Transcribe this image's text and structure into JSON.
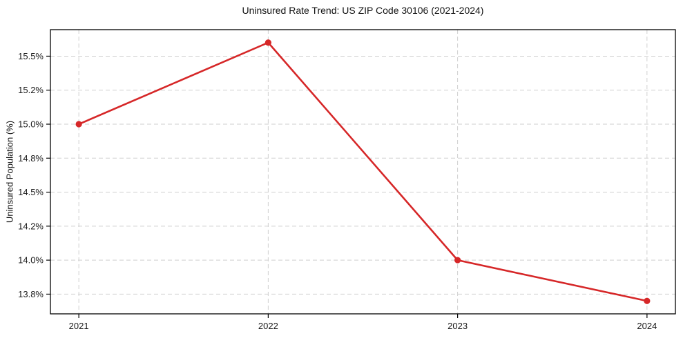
{
  "chart_data": {
    "type": "line",
    "title": "Uninsured Rate Trend: US ZIP Code 30106 (2021-2024)",
    "xlabel": "",
    "ylabel": "Uninsured Population (%)",
    "x": [
      2021,
      2022,
      2023,
      2024
    ],
    "x_tick_labels": [
      "2021",
      "2022",
      "2023",
      "2024"
    ],
    "series": [
      {
        "name": "Uninsured Rate",
        "values": [
          15.0,
          15.6,
          14.0,
          13.7
        ]
      }
    ],
    "y_ticks": [
      13.75,
      14.0,
      14.25,
      14.5,
      14.75,
      15.0,
      15.25,
      15.5
    ],
    "y_tick_labels": [
      "13.8%",
      "14.0%",
      "14.2%",
      "14.5%",
      "14.8%",
      "15.0%",
      "15.2%",
      "15.5%"
    ],
    "xlim": [
      2020.85,
      2024.15
    ],
    "ylim": [
      13.605,
      15.695
    ],
    "grid": true,
    "grid_style": "dashed",
    "legend_position": "none",
    "line_color": "#d62728",
    "marker": "circle",
    "marker_color": "#d62728",
    "grid_color": "#cfcfcf",
    "axis_color": "#000000",
    "text_color": "#1a1a1a",
    "background_color": "#ffffff"
  }
}
